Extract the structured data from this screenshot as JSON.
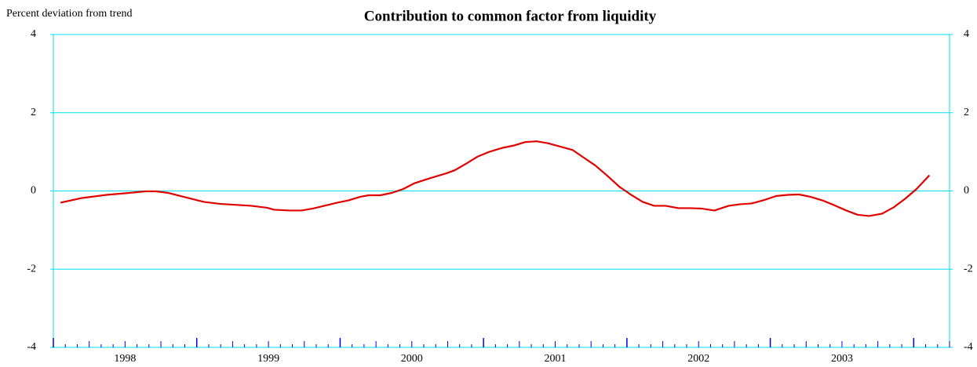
{
  "chart_data": {
    "type": "line",
    "title": "Contribution to common factor from liquidity",
    "y_label": "Percent deviation from trend",
    "x": [
      1998.05,
      1998.2,
      1998.37,
      1998.53,
      1998.64,
      1998.72,
      1998.8,
      1998.94,
      1999.05,
      1999.16,
      1999.38,
      1999.49,
      1999.54,
      1999.65,
      1999.73,
      1999.81,
      1999.98,
      2000.06,
      2000.14,
      2000.2,
      2000.28,
      2000.36,
      2000.44,
      2000.52,
      2000.63,
      2000.74,
      2000.8,
      2000.88,
      2000.96,
      2001.04,
      2001.13,
      2001.21,
      2001.29,
      2001.37,
      2001.45,
      2001.54,
      2001.62,
      2001.7,
      2001.78,
      2001.86,
      2001.95,
      2002.03,
      2002.11,
      2002.19,
      2002.27,
      2002.36,
      2002.44,
      2002.52,
      2002.61,
      2002.71,
      2002.79,
      2002.87,
      2002.96,
      2003.04,
      2003.12,
      2003.2,
      2003.28,
      2003.37,
      2003.45,
      2003.53,
      2003.61,
      2003.69,
      2003.78,
      2003.86,
      2003.94,
      2004.02,
      2004.11
    ],
    "values": [
      -0.3,
      -0.18,
      -0.1,
      -0.05,
      -0.01,
      -0.01,
      -0.05,
      -0.18,
      -0.28,
      -0.33,
      -0.38,
      -0.43,
      -0.48,
      -0.5,
      -0.5,
      -0.45,
      -0.3,
      -0.24,
      -0.15,
      -0.11,
      -0.11,
      -0.05,
      0.05,
      0.2,
      0.33,
      0.45,
      0.53,
      0.7,
      0.88,
      1.0,
      1.1,
      1.16,
      1.25,
      1.27,
      1.22,
      1.13,
      1.05,
      0.85,
      0.65,
      0.4,
      0.1,
      -0.1,
      -0.28,
      -0.38,
      -0.38,
      -0.44,
      -0.44,
      -0.45,
      -0.5,
      -0.38,
      -0.34,
      -0.32,
      -0.23,
      -0.13,
      -0.1,
      -0.09,
      -0.15,
      -0.25,
      -0.37,
      -0.5,
      -0.61,
      -0.64,
      -0.58,
      -0.42,
      -0.2,
      0.05,
      0.4
    ],
    "color": "#e00000",
    "xlim": [
      1998,
      2004.25
    ],
    "xticks": [
      {
        "value": 1998.5,
        "label": "1998"
      },
      {
        "value": 1999.5,
        "label": "1999"
      },
      {
        "value": 2000.5,
        "label": "2000"
      },
      {
        "value": 2001.5,
        "label": "2001"
      },
      {
        "value": 2002.5,
        "label": "2002"
      },
      {
        "value": 2003.5,
        "label": "2003"
      }
    ],
    "ylim": [
      -4,
      4
    ],
    "yticks": [
      -4,
      -2,
      0,
      2,
      4
    ],
    "grid": true
  }
}
